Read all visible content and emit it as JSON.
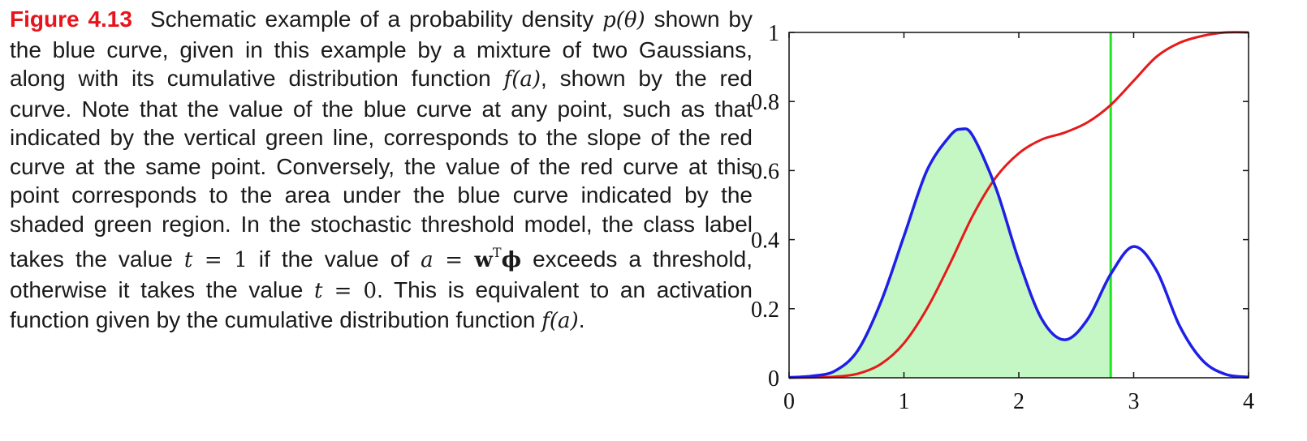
{
  "caption": {
    "label": "Figure 4.13",
    "parts": [
      "Schematic example of a probability density ",
      "p(θ)",
      " shown by the blue curve, given in this example by a mixture of two Gaussians, along with its cumulative distribution function ",
      "f(a)",
      ", shown by the red curve.  Note that the value of the blue curve at any point, such as that indicated by the vertical green line, corresponds to the slope of the red curve at the same point. Conversely, the value of the red curve at this point corresponds to the area under the blue curve indicated by the shaded green region.  In the stochastic threshold model, the class label takes the value ",
      "t",
      " = 1",
      " if the value of ",
      "a",
      " = ",
      "w",
      "T",
      "ϕ",
      " exceeds a threshold, otherwise it takes the value ",
      "t",
      " = 0",
      ". This is equivalent to an activation function given by the cumulative distribution function ",
      "f(a)",
      "."
    ]
  },
  "chart_data": {
    "type": "line",
    "title": "",
    "xlabel": "",
    "ylabel": "",
    "xlim": [
      0,
      4
    ],
    "ylim": [
      0,
      1
    ],
    "x_ticks": [
      "0",
      "1",
      "2",
      "3",
      "4"
    ],
    "y_ticks": [
      "0",
      "0.2",
      "0.4",
      "0.6",
      "0.8",
      "1"
    ],
    "grid": false,
    "colors": {
      "density": "#1f1fe6",
      "cdf": "#e61a1a",
      "threshold": "#1ee61e",
      "shade": "#c4f7c4"
    },
    "series": [
      {
        "x": [
          0,
          0.2,
          0.4,
          0.6,
          0.8,
          1.0,
          1.2,
          1.4,
          1.5,
          1.6,
          1.8,
          2.0,
          2.2,
          2.4,
          2.6,
          2.8,
          3.0,
          3.2,
          3.4,
          3.6,
          3.8,
          4.0
        ],
        "values": [
          0.001,
          0.005,
          0.02,
          0.08,
          0.22,
          0.41,
          0.6,
          0.7,
          0.72,
          0.7,
          0.55,
          0.34,
          0.17,
          0.11,
          0.17,
          0.3,
          0.38,
          0.31,
          0.15,
          0.05,
          0.01,
          0.002
        ]
      },
      {
        "x": [
          0,
          0.2,
          0.4,
          0.6,
          0.8,
          1.0,
          1.2,
          1.4,
          1.6,
          1.8,
          2.0,
          2.2,
          2.4,
          2.6,
          2.8,
          3.0,
          3.2,
          3.4,
          3.6,
          3.8,
          4.0
        ],
        "values": [
          0,
          0.001,
          0.003,
          0.012,
          0.04,
          0.1,
          0.2,
          0.33,
          0.47,
          0.58,
          0.65,
          0.69,
          0.71,
          0.74,
          0.79,
          0.86,
          0.93,
          0.97,
          0.99,
          1.0,
          1.0
        ]
      }
    ],
    "threshold_x": 2.8,
    "shaded_region": [
      0,
      2.8
    ]
  }
}
